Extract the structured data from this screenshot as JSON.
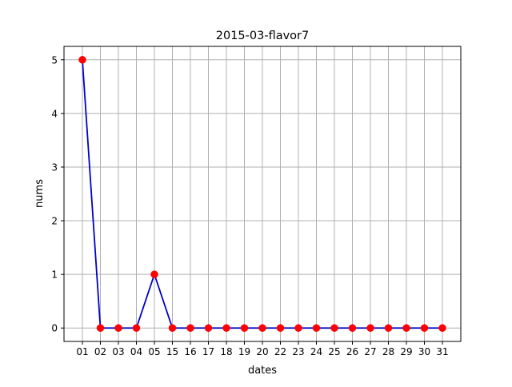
{
  "chart_data": {
    "type": "line",
    "title": "2015-03-flavor7",
    "xlabel": "dates",
    "ylabel": "nums",
    "categories": [
      "01",
      "02",
      "03",
      "04",
      "05",
      "15",
      "16",
      "17",
      "18",
      "19",
      "20",
      "22",
      "23",
      "24",
      "25",
      "26",
      "27",
      "28",
      "29",
      "30",
      "31"
    ],
    "series": [
      {
        "values": [
          5,
          0,
          0,
          0,
          1,
          0,
          0,
          0,
          0,
          0,
          0,
          0,
          0,
          0,
          0,
          0,
          0,
          0,
          0,
          0,
          0
        ]
      }
    ],
    "yticks": [
      "0",
      "1",
      "2",
      "3",
      "4",
      "5"
    ],
    "ylim": [
      -0.25,
      5.25
    ],
    "grid": true,
    "colors": {
      "line": "#0000cc",
      "marker": "#ff0000",
      "grid": "#b0b0b0",
      "axes": "#000000"
    }
  }
}
